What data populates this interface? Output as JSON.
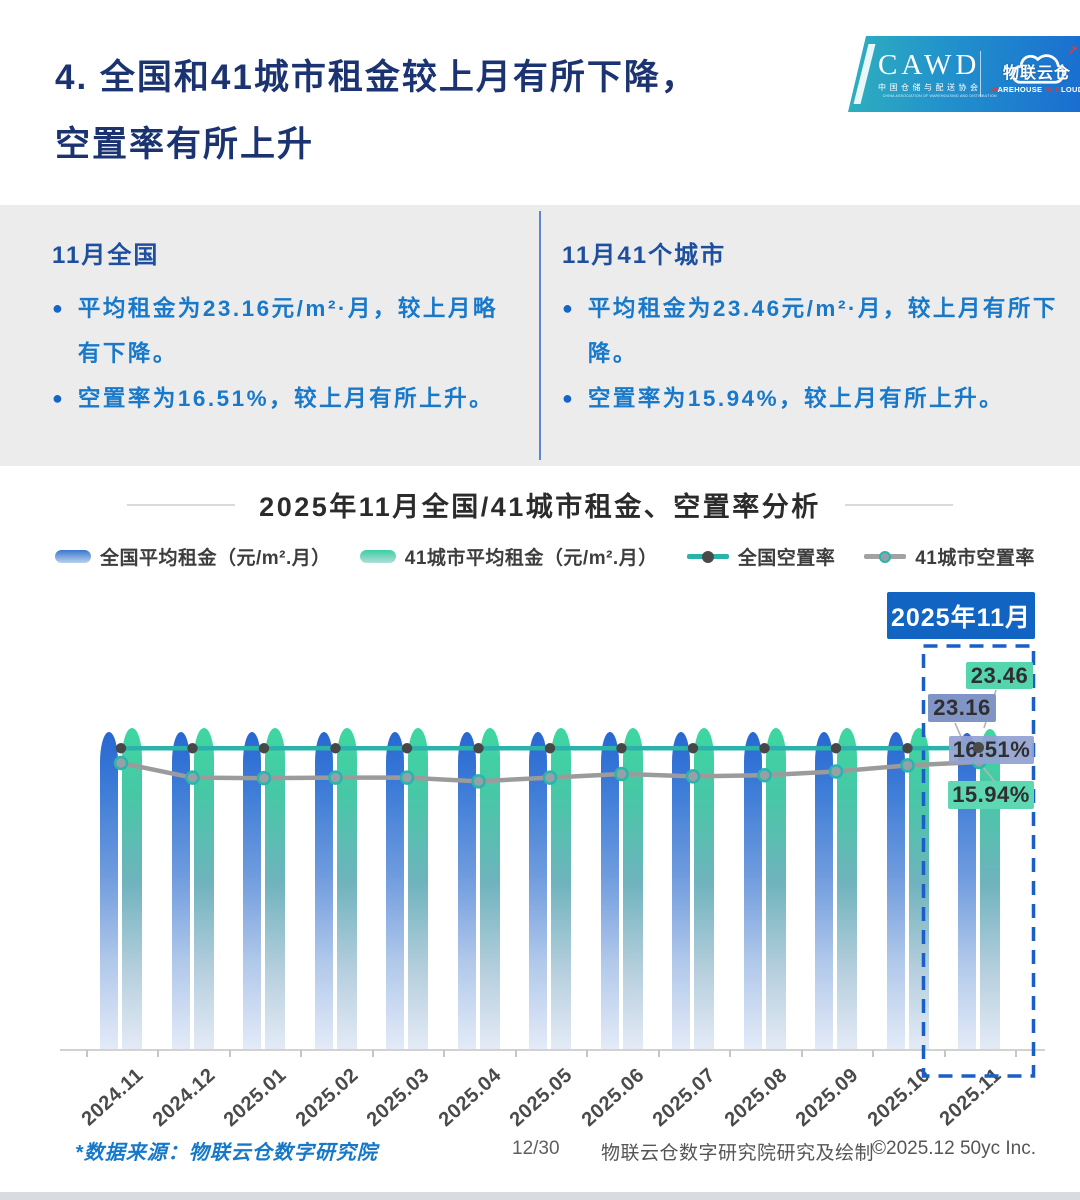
{
  "header": {
    "title_line1": "4. 全国和41城市租金较上月有所下降，",
    "title_line2": "空置率有所上升"
  },
  "logo": {
    "cawd": "CAWD",
    "cawd_cn": "中国仓储与配送协会",
    "cawd_en": "CHINA ASSOCIATION OF WAREHOUSING AND DISTRIBUTION",
    "cloud_cn": "物联云仓",
    "cloud_arrow": "↗",
    "en_w": "W",
    "en_arehouse": "AREHOUSE",
    "en_in": "IN",
    "en_c": "C",
    "en_loud": "LOUD"
  },
  "summary": {
    "national": {
      "title": "11月全国",
      "bullets": [
        "平均租金为23.16元/m²·月，较上月略有下降。",
        "空置率为16.51%，较上月有所上升。"
      ]
    },
    "cities": {
      "title": "11月41个城市",
      "bullets": [
        "平均租金为23.46元/m²·月，较上月有所下降。",
        "空置率为15.94%，较上月有所上升。"
      ]
    }
  },
  "chart_data": {
    "type": "bar+line",
    "title": "2025年11月全国/41城市租金、空置率分析",
    "categories": [
      "2024.11",
      "2024.12",
      "2025.01",
      "2025.02",
      "2025.03",
      "2025.04",
      "2025.05",
      "2025.06",
      "2025.07",
      "2025.08",
      "2025.09",
      "2025.10",
      "2025.11"
    ],
    "series": [
      {
        "name": "全国平均租金（元/m².月）",
        "type": "bar",
        "color": "#2a6bd3",
        "values": [
          23.2,
          23.2,
          23.2,
          23.2,
          23.2,
          23.2,
          23.2,
          23.2,
          23.2,
          23.2,
          23.2,
          23.2,
          23.16
        ]
      },
      {
        "name": "41城市平均租金（元/m².月）",
        "type": "bar",
        "color": "#3ed7a0",
        "values": [
          23.5,
          23.5,
          23.5,
          23.5,
          23.5,
          23.5,
          23.5,
          23.5,
          23.5,
          23.5,
          23.5,
          23.5,
          23.46
        ]
      },
      {
        "name": "全国空置率",
        "type": "line",
        "color": "#2bb3ab",
        "values": [
          16.5,
          16.5,
          16.5,
          16.5,
          16.5,
          16.5,
          16.5,
          16.5,
          16.5,
          16.5,
          16.5,
          16.5,
          16.51
        ]
      },
      {
        "name": "41城市空置率",
        "type": "line",
        "color": "#9b9b9b",
        "values": [
          15.9,
          15.3,
          15.28,
          15.3,
          15.3,
          15.15,
          15.3,
          15.45,
          15.35,
          15.4,
          15.55,
          15.8,
          15.94
        ]
      }
    ],
    "legend_position": "top-left",
    "grid": false,
    "highlight_label": "2025年11月",
    "callouts": {
      "city_rent": "23.46",
      "national_rent": "23.16",
      "national_vacancy": "16.51%",
      "city_vacancy": "15.94%"
    }
  },
  "colors": {
    "accent_blue": "#1164c2",
    "title_navy": "#1c3372",
    "text_blue": "#1879ca",
    "line_national": "#2bb3ab",
    "line_cities": "#9b9b9b",
    "callout_teal": "#55d5ad",
    "callout_steel": "#8094c6",
    "callout_lavender": "#92a1d2",
    "logo_red": "#e8392f"
  },
  "footer": {
    "source": "*数据来源：物联云仓数字研究院",
    "page": "12/30",
    "credit": "物联云仓数字研究院研究及绘制",
    "copyright": "©2025.12 50yc Inc."
  }
}
